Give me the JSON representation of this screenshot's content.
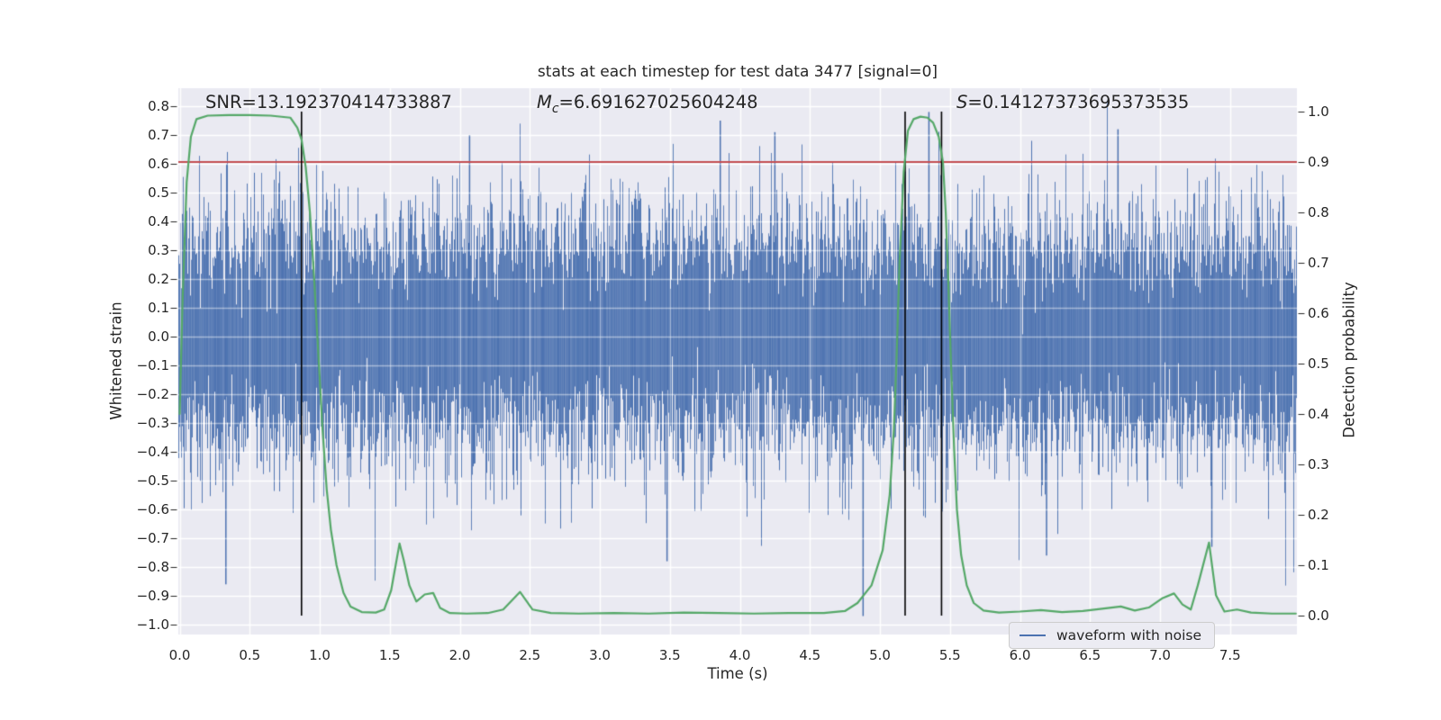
{
  "title": "stats at each timestep for test data 3477 [signal=0]",
  "annotations": {
    "snr": "SNR=13.192370414733887",
    "mc_var": "M",
    "mc_sub": "c",
    "mc_value": "=6.691627025604248",
    "s_var": "S",
    "s_value": "=0.14127373695373535"
  },
  "legend": {
    "label": "waveform with noise"
  },
  "colors": {
    "axes_background": "#eaeaf2",
    "grid": "#ffffff",
    "waveform": "#4c72b0",
    "probability_line": "#55a868",
    "threshold_line": "#c44e52",
    "event_lines": "#000000",
    "text": "#262626"
  },
  "chart_data": {
    "type": "line",
    "title": "stats at each timestep for test data 3477 [signal=0]",
    "xlabel": "Time (s)",
    "ylabel_left": "Whitened strain",
    "ylabel_right": "Detection probability",
    "xlim": [
      0.0,
      7.98
    ],
    "ylim_left": [
      -1.06,
      0.86
    ],
    "ylim_right": [
      -0.038,
      1.047
    ],
    "grid": true,
    "x_tick_labels": [
      "0.0",
      "0.5",
      "1.0",
      "1.5",
      "2.0",
      "2.5",
      "3.0",
      "3.5",
      "4.0",
      "4.5",
      "5.0",
      "5.5",
      "6.0",
      "6.5",
      "7.0",
      "7.5"
    ],
    "x_tick_values": [
      0,
      0.5,
      1,
      1.5,
      2,
      2.5,
      3,
      3.5,
      4,
      4.5,
      5,
      5.5,
      6,
      6.5,
      7,
      7.5
    ],
    "left_tick_labels": [
      "0.8",
      "0.7",
      "0.6",
      "0.5",
      "0.4",
      "0.3",
      "0.2",
      "0.1",
      "0.0",
      "−0.1",
      "−0.2",
      "−0.3",
      "−0.4",
      "−0.5",
      "−0.6",
      "−0.7",
      "−0.8",
      "−0.9",
      "−1.0"
    ],
    "left_tick_values": [
      0.8,
      0.7,
      0.6,
      0.5,
      0.4,
      0.3,
      0.2,
      0.1,
      0.0,
      -0.1,
      -0.2,
      -0.3,
      -0.4,
      -0.5,
      -0.6,
      -0.7,
      -0.8,
      -0.9,
      -1.0
    ],
    "right_tick_labels": [
      "1.0",
      "0.9",
      "0.8",
      "0.7",
      "0.6",
      "0.5",
      "0.4",
      "0.3",
      "0.2",
      "0.1",
      "0.0"
    ],
    "right_tick_values": [
      1.0,
      0.9,
      0.8,
      0.7,
      0.6,
      0.5,
      0.4,
      0.3,
      0.2,
      0.1,
      0.0
    ],
    "threshold": {
      "axis": "right",
      "value": 0.9
    },
    "event_vlines": {
      "x": [
        0.87,
        5.18,
        5.44
      ],
      "span_right_axis": [
        0.0,
        1.0
      ]
    },
    "series": [
      {
        "name": "waveform with noise",
        "axis": "left",
        "kind": "stochastic-noise",
        "std": 0.2,
        "samples_per_column": 13,
        "seed": 3477,
        "clip": [
          -1.02,
          0.82
        ],
        "notable_extremes": [
          [
            0.33,
            -0.86
          ],
          [
            2.07,
            0.7
          ],
          [
            3.48,
            -0.78
          ],
          [
            3.86,
            0.75
          ],
          [
            4.25,
            0.71
          ],
          [
            4.88,
            -0.97
          ],
          [
            5.35,
            0.78
          ],
          [
            6.19,
            -0.76
          ],
          [
            6.7,
            0.72
          ],
          [
            7.37,
            -0.73
          ]
        ]
      },
      {
        "name": "detection probability",
        "axis": "right",
        "kind": "keypoints",
        "points": [
          [
            0.0,
            0.4
          ],
          [
            0.02,
            0.62
          ],
          [
            0.05,
            0.86
          ],
          [
            0.08,
            0.95
          ],
          [
            0.12,
            0.985
          ],
          [
            0.2,
            0.992
          ],
          [
            0.35,
            0.993
          ],
          [
            0.5,
            0.993
          ],
          [
            0.65,
            0.992
          ],
          [
            0.79,
            0.988
          ],
          [
            0.84,
            0.968
          ],
          [
            0.87,
            0.945
          ],
          [
            0.9,
            0.89
          ],
          [
            0.93,
            0.8
          ],
          [
            0.96,
            0.67
          ],
          [
            0.99,
            0.52
          ],
          [
            1.02,
            0.37
          ],
          [
            1.05,
            0.25
          ],
          [
            1.08,
            0.17
          ],
          [
            1.12,
            0.1
          ],
          [
            1.17,
            0.045
          ],
          [
            1.22,
            0.018
          ],
          [
            1.3,
            0.007
          ],
          [
            1.4,
            0.006
          ],
          [
            1.46,
            0.012
          ],
          [
            1.51,
            0.05
          ],
          [
            1.57,
            0.143
          ],
          [
            1.6,
            0.11
          ],
          [
            1.64,
            0.06
          ],
          [
            1.69,
            0.028
          ],
          [
            1.75,
            0.042
          ],
          [
            1.81,
            0.045
          ],
          [
            1.86,
            0.015
          ],
          [
            1.93,
            0.005
          ],
          [
            2.05,
            0.004
          ],
          [
            2.2,
            0.005
          ],
          [
            2.31,
            0.012
          ],
          [
            2.43,
            0.047
          ],
          [
            2.52,
            0.012
          ],
          [
            2.65,
            0.005
          ],
          [
            2.85,
            0.004
          ],
          [
            3.1,
            0.005
          ],
          [
            3.35,
            0.004
          ],
          [
            3.6,
            0.006
          ],
          [
            3.85,
            0.005
          ],
          [
            4.1,
            0.004
          ],
          [
            4.35,
            0.005
          ],
          [
            4.6,
            0.005
          ],
          [
            4.75,
            0.009
          ],
          [
            4.84,
            0.025
          ],
          [
            4.94,
            0.06
          ],
          [
            5.02,
            0.13
          ],
          [
            5.07,
            0.24
          ],
          [
            5.1,
            0.37
          ],
          [
            5.12,
            0.52
          ],
          [
            5.14,
            0.7
          ],
          [
            5.17,
            0.88
          ],
          [
            5.2,
            0.962
          ],
          [
            5.24,
            0.985
          ],
          [
            5.29,
            0.99
          ],
          [
            5.34,
            0.988
          ],
          [
            5.38,
            0.978
          ],
          [
            5.42,
            0.95
          ],
          [
            5.45,
            0.9
          ],
          [
            5.47,
            0.8
          ],
          [
            5.49,
            0.65
          ],
          [
            5.51,
            0.48
          ],
          [
            5.53,
            0.33
          ],
          [
            5.55,
            0.21
          ],
          [
            5.58,
            0.12
          ],
          [
            5.62,
            0.06
          ],
          [
            5.67,
            0.025
          ],
          [
            5.74,
            0.01
          ],
          [
            5.85,
            0.006
          ],
          [
            6.0,
            0.008
          ],
          [
            6.15,
            0.011
          ],
          [
            6.3,
            0.007
          ],
          [
            6.45,
            0.009
          ],
          [
            6.6,
            0.014
          ],
          [
            6.72,
            0.018
          ],
          [
            6.82,
            0.01
          ],
          [
            6.92,
            0.016
          ],
          [
            7.02,
            0.035
          ],
          [
            7.1,
            0.044
          ],
          [
            7.16,
            0.022
          ],
          [
            7.22,
            0.012
          ],
          [
            7.27,
            0.06
          ],
          [
            7.35,
            0.145
          ],
          [
            7.4,
            0.04
          ],
          [
            7.46,
            0.008
          ],
          [
            7.55,
            0.012
          ],
          [
            7.65,
            0.006
          ],
          [
            7.8,
            0.004
          ],
          [
            7.97,
            0.004
          ]
        ]
      }
    ],
    "legend": {
      "entries": [
        "waveform with noise"
      ],
      "position": "lower right"
    }
  }
}
